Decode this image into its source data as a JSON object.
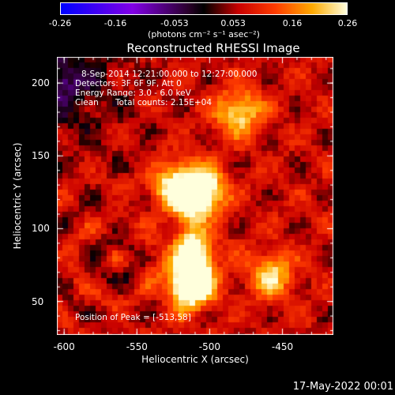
{
  "chart_data": {
    "type": "heatmap",
    "title": "Reconstructed RHESSI Image",
    "xlabel": "Heliocentric X (arcsec)",
    "ylabel": "Heliocentric Y (arcsec)",
    "xlim": [
      -605,
      -415
    ],
    "ylim": [
      27,
      218
    ],
    "x_ticks": [
      "-600",
      "-550",
      "-500",
      "-450"
    ],
    "x_tick_values": [
      -600,
      -550,
      -500,
      -450
    ],
    "y_ticks": [
      "50",
      "100",
      "150",
      "200"
    ],
    "y_tick_values": [
      50,
      100,
      150,
      200
    ],
    "colorbar": {
      "min": -0.26,
      "max": 0.26,
      "ticks": [
        "-0.26",
        "-0.16",
        "-0.053",
        "0.053",
        "0.16",
        "0.26"
      ],
      "unit": "(photons cm⁻² s⁻¹ asec⁻²)"
    },
    "annotations": {
      "line1": "8-Sep-2014 12:21:00.000 to 12:27:00.000",
      "line2": "Detectors: 3F 6F 9F, Att 0",
      "line3": "Energy Range: 3.0 - 6.0 keV",
      "line4_a": "Clean",
      "line4_b": "Total counts: 2.15E+04",
      "peak": "Position of Peak = [-513,58]"
    },
    "peak": [
      -513,
      58
    ],
    "sources": [
      {
        "x": -522,
        "y": 128,
        "amp": 0.23
      },
      {
        "x": -505,
        "y": 126,
        "amp": 0.24
      },
      {
        "x": -513,
        "y": 60,
        "amp": 0.26
      },
      {
        "x": -512,
        "y": 80,
        "amp": 0.2
      },
      {
        "x": -480,
        "y": 180,
        "amp": 0.18
      },
      {
        "x": -458,
        "y": 68,
        "amp": 0.16
      }
    ],
    "colormap": "red-temperature with negative blue-purple"
  },
  "footer": {
    "timestamp": "17-May-2022 00:01"
  }
}
